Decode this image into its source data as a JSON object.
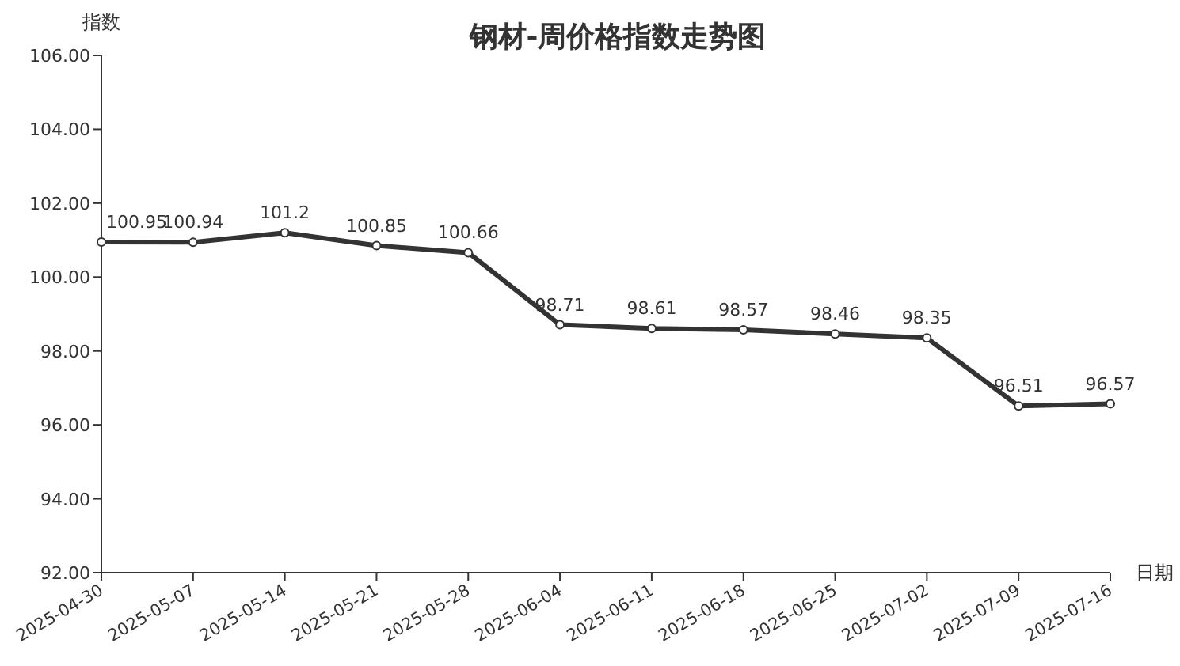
{
  "chart_data": {
    "type": "line",
    "title": "钢材-周价格指数走势图",
    "xlabel": "日期",
    "ylabel": "指数",
    "categories": [
      "2025-04-30",
      "2025-05-07",
      "2025-05-14",
      "2025-05-21",
      "2025-05-28",
      "2025-06-04",
      "2025-06-11",
      "2025-06-18",
      "2025-06-25",
      "2025-07-02",
      "2025-07-09",
      "2025-07-16"
    ],
    "series": [
      {
        "color": "#333333",
        "values": [
          100.95,
          100.94,
          101.2,
          100.85,
          100.66,
          98.71,
          98.61,
          98.57,
          98.46,
          98.35,
          96.51,
          96.57
        ]
      }
    ],
    "ylim": [
      92,
      106
    ],
    "yticks": [
      {
        "value": 92,
        "label": "92.00"
      },
      {
        "value": 94,
        "label": "94.00"
      },
      {
        "value": 96,
        "label": "96.00"
      },
      {
        "value": 98,
        "label": "98.00"
      },
      {
        "value": 100,
        "label": "100.00"
      },
      {
        "value": 102,
        "label": "102.00"
      },
      {
        "value": 104,
        "label": "104.00"
      },
      {
        "value": 106,
        "label": "106.00"
      }
    ],
    "data_labels": true,
    "marker": "circle",
    "line_style": "solid"
  }
}
